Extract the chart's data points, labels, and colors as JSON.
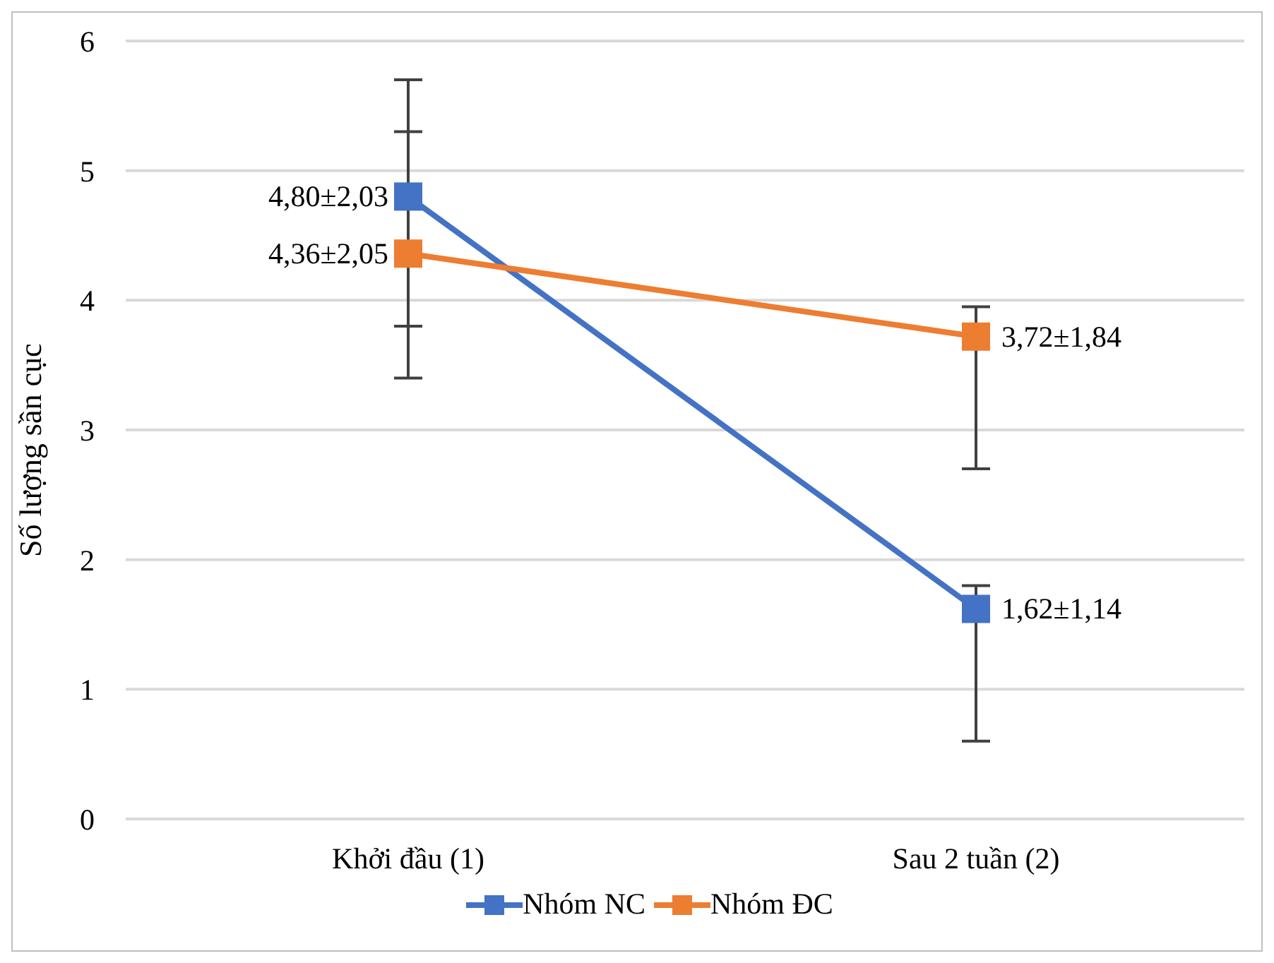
{
  "chart_data": {
    "type": "line",
    "ylabel": "Số lượng sần cục",
    "categories": [
      "Khởi đầu (1)",
      "Sau 2 tuần (2)"
    ],
    "series": [
      {
        "name": "Nhóm NC",
        "color": "#4472c4",
        "values": [
          4.8,
          1.62
        ],
        "value_labels": [
          "4,80±2,03",
          "1,62±1,14"
        ],
        "errors": [
          [
            3.8,
            5.7
          ],
          [
            0.6,
            1.8
          ]
        ]
      },
      {
        "name": "Nhóm ĐC",
        "color": "#ed7d31",
        "values": [
          4.36,
          3.72
        ],
        "value_labels": [
          "4,36±2,05",
          "3,72±1,84"
        ],
        "errors": [
          [
            3.4,
            5.3
          ],
          [
            2.7,
            3.95
          ]
        ]
      }
    ],
    "ylim": [
      0,
      6
    ],
    "yticks": [
      0,
      1,
      2,
      3,
      4,
      5,
      6
    ],
    "grid": "y",
    "legend": "bottom",
    "marker": "square",
    "line_style": "solid"
  }
}
